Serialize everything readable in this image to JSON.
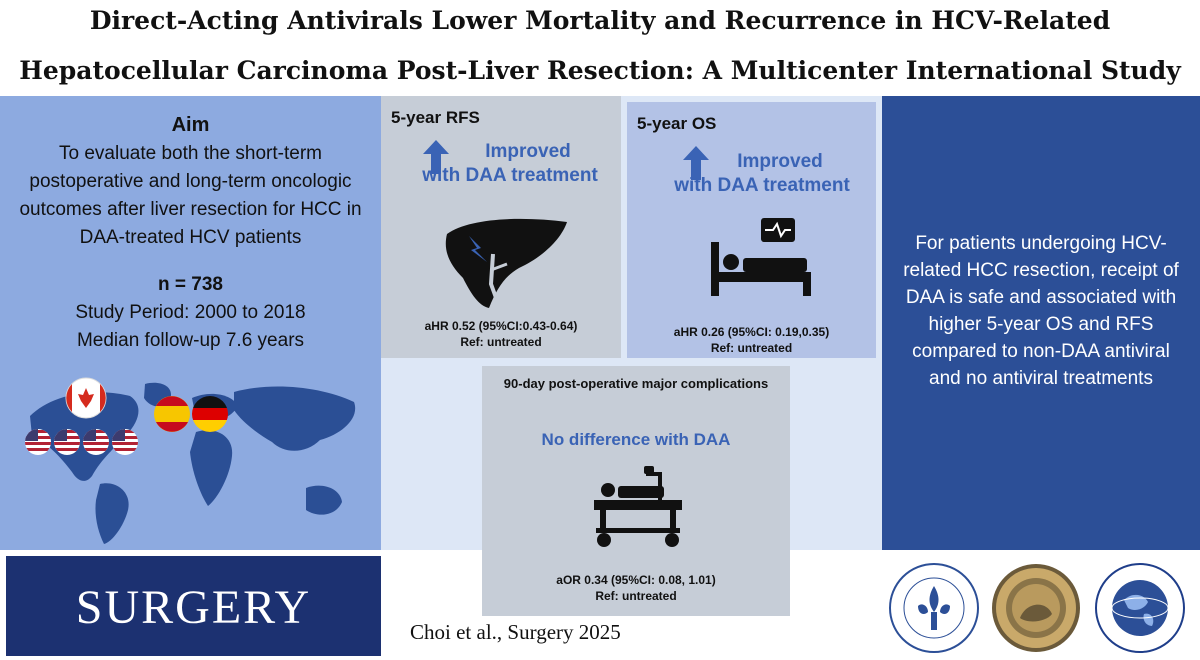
{
  "title": {
    "line1": "Direct-Acting Antivirals Lower Mortality and Recurrence in HCV-Related",
    "line2": "Hepatocellular Carcinoma Post-Liver Resection: A Multicenter International Study"
  },
  "left": {
    "aim_title": "Aim",
    "aim_text": "To evaluate both the short-term postoperative and long-term oncologic outcomes after liver resection for HCC in DAA-treated HCV patients",
    "n": "n = 738",
    "period": "Study Period: 2000 to 2018",
    "followup": "Median follow-up 7.6 years",
    "map_flags": [
      "canada-flag",
      "spain-flag",
      "germany-flag",
      "usa-flag",
      "usa-flag",
      "usa-flag",
      "usa-flag"
    ]
  },
  "journal": "SURGERY",
  "rfs": {
    "title": "5-year RFS",
    "improved_line1": "Improved",
    "improved_line2": "with DAA treatment",
    "hr": "aHR 0.52 (95%CI:0.43-0.64)",
    "ref": "Ref: untreated",
    "icon": "liver-icon"
  },
  "os": {
    "title": "5-year OS",
    "improved_line1": "Improved",
    "improved_line2": "with DAA treatment",
    "hr": "aHR 0.26 (95%CI: 0.19,0.35)",
    "ref": "Ref: untreated",
    "icon": "hospital-bed-monitor-icon"
  },
  "complications": {
    "title": "90-day post-operative major complications",
    "result": "No difference with DAA",
    "or": "aOR 0.34 (95%CI: 0.08, 1.01)",
    "ref": "Ref: untreated",
    "icon": "hospital-stretcher-icon"
  },
  "citation": "Choi et al., Surgery 2025",
  "conclusion": "For patients undergoing HCV-related HCC resection, receipt of DAA is safe and associated with higher 5-year OS and RFS compared to non-DAA antiviral and no antiviral treatments",
  "seals": [
    "society-of-university-surgeons-seal",
    "central-surgical-association-seal",
    "american-association-of-endocrine-surgeons-seal"
  ],
  "colors": {
    "left_panel": "#8daae0",
    "right_panel": "#2c4f97",
    "journal_box": "#1c3171",
    "accent_text": "#3a63b5",
    "gray_box": "#c6cdd7"
  }
}
